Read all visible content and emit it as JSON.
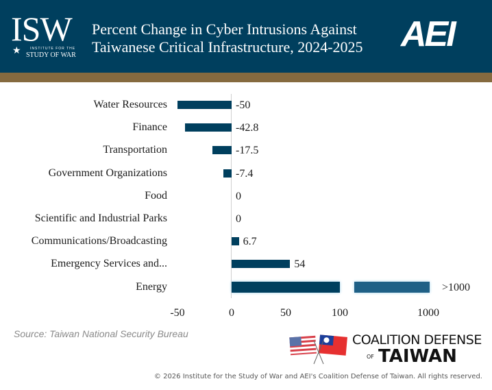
{
  "header": {
    "isw_logo": {
      "letters": "ISW",
      "line1": "INSTITUTE FOR THE",
      "line2": "STUDY OF WAR"
    },
    "title_line1": "Percent Change in Cyber Intrusions Against",
    "title_line2": "Taiwanese Critical Infrastructure, 2024-2025",
    "aei_logo": "AEI"
  },
  "colors": {
    "header_bg": "#003f5e",
    "band": "#856a3f",
    "bar": "#003f5e",
    "bar_broken_segment": "#1f6086"
  },
  "chart_data": {
    "type": "bar",
    "orientation": "horizontal",
    "categories": [
      "Water Resources",
      "Finance",
      "Transportation",
      "Government Organizations",
      "Food",
      "Scientific and Industrial Parks",
      "Communications/Broadcasting",
      "Emergency Services and...",
      "Energy"
    ],
    "values": [
      -50,
      -42.8,
      -17.5,
      -7.4,
      0,
      0,
      6.7,
      54,
      1000
    ],
    "value_labels": [
      "-50",
      "-42.8",
      "-17.5",
      "-7.4",
      "0",
      "0",
      "6.7",
      "54",
      ">1000"
    ],
    "x_ticks": [
      "-50",
      "0",
      "50",
      "100",
      "1000"
    ],
    "axis_break": "between 100 and 1000",
    "xlim": [
      -50,
      1000
    ],
    "grid": false,
    "legend": "none"
  },
  "source": "Source: Taiwan National Security Bureau",
  "footer_logo": {
    "line1": "COALITION DEFENSE",
    "of": "OF",
    "line2": "TAIWAN"
  },
  "copyright": "© 2026 Institute for the Study of War and AEI's Coalition Defense of Taiwan. All rights reserved."
}
